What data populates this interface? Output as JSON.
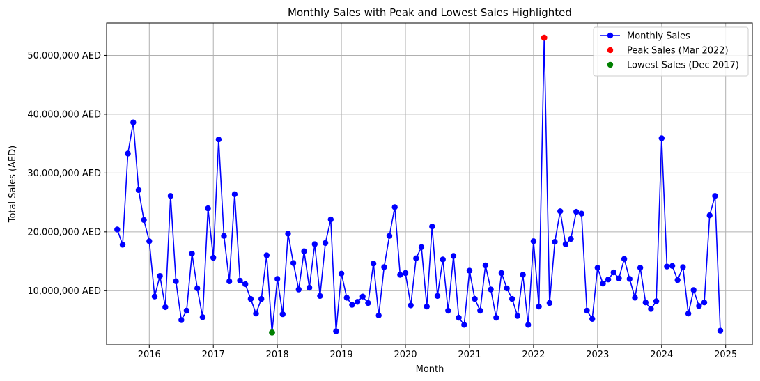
{
  "chart_data": {
    "type": "line",
    "title": "Monthly Sales with Peak and Lowest Sales Highlighted",
    "xlabel": "Month",
    "ylabel": "Total Sales (AED)",
    "xlim": [
      "2015-05",
      "2025-06"
    ],
    "ylim": [
      800000,
      55500000
    ],
    "grid": true,
    "legend_position": "top-right",
    "x_ticks": [
      "2016",
      "2017",
      "2018",
      "2019",
      "2020",
      "2021",
      "2022",
      "2023",
      "2024",
      "2025"
    ],
    "y_ticks": [
      {
        "value": 10000000,
        "label": "10,000,000 AED"
      },
      {
        "value": 20000000,
        "label": "20,000,000 AED"
      },
      {
        "value": 30000000,
        "label": "30,000,000 AED"
      },
      {
        "value": 40000000,
        "label": "40,000,000 AED"
      },
      {
        "value": 50000000,
        "label": "50,000,000 AED"
      }
    ],
    "series": [
      {
        "name": "Monthly Sales",
        "color": "#0000ff",
        "start_month": "2015-07",
        "values": [
          20400000,
          17800000,
          33300000,
          38600000,
          27100000,
          22000000,
          18400000,
          9000000,
          12500000,
          7200000,
          26100000,
          11600000,
          5000000,
          6600000,
          16300000,
          10400000,
          5500000,
          24000000,
          15600000,
          35700000,
          19300000,
          11600000,
          26400000,
          11700000,
          11100000,
          8600000,
          6100000,
          8600000,
          16000000,
          2900000,
          12000000,
          6000000,
          19700000,
          14700000,
          10200000,
          16700000,
          10500000,
          17900000,
          9100000,
          18100000,
          22100000,
          3100000,
          12900000,
          8800000,
          7600000,
          8100000,
          9000000,
          7900000,
          14600000,
          5800000,
          14000000,
          19300000,
          24200000,
          12700000,
          13000000,
          7500000,
          15500000,
          17400000,
          7300000,
          20900000,
          9100000,
          15300000,
          6600000,
          15900000,
          5400000,
          4200000,
          13400000,
          8600000,
          6600000,
          14300000,
          10200000,
          5400000,
          13000000,
          10400000,
          8600000,
          5700000,
          12700000,
          4200000,
          18400000,
          7300000,
          53000000,
          7900000,
          18300000,
          23500000,
          17900000,
          18800000,
          23400000,
          23100000,
          6600000,
          5200000,
          13900000,
          11200000,
          11900000,
          13100000,
          12100000,
          15400000,
          12000000,
          8800000,
          13900000,
          8000000,
          6900000,
          8200000,
          35900000,
          14100000,
          14200000,
          11800000,
          14000000,
          6100000,
          10100000,
          7400000,
          8000000,
          22800000,
          26100000,
          3200000
        ]
      },
      {
        "name": "Peak Sales (Mar 2022)",
        "color": "#ff0000",
        "points": [
          {
            "x": "2022-03",
            "y": 53000000
          }
        ]
      },
      {
        "name": "Lowest Sales (Dec 2017)",
        "color": "#008000",
        "points": [
          {
            "x": "2017-12",
            "y": 2900000
          }
        ]
      }
    ]
  }
}
